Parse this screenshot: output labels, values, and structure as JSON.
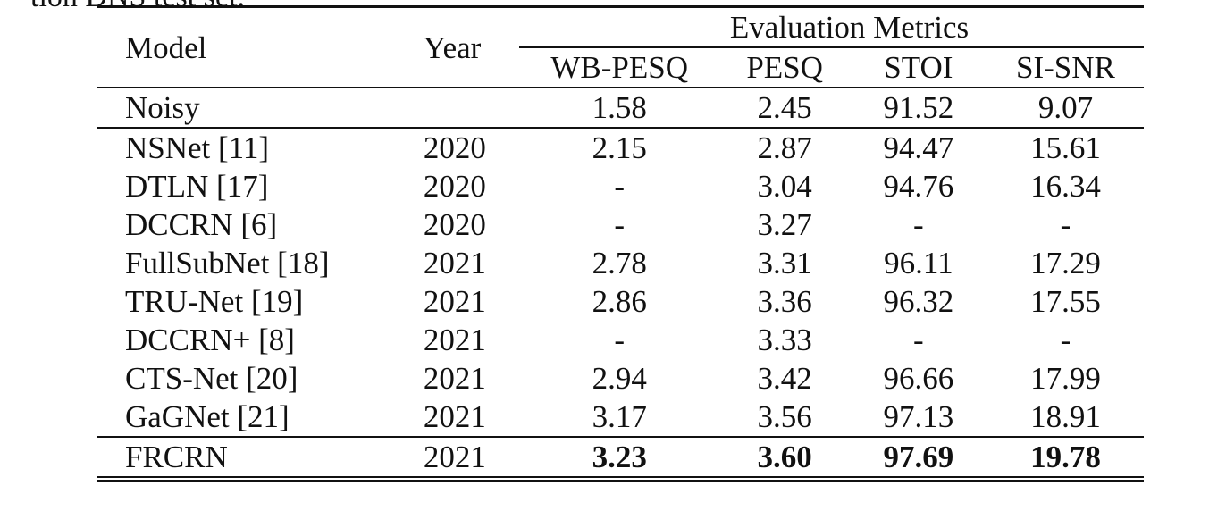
{
  "caption_tail": "tion DNS test set.",
  "table": {
    "header": {
      "model": "Model",
      "year": "Year",
      "group": "Evaluation Metrics",
      "metrics": [
        "WB-PESQ",
        "PESQ",
        "STOI",
        "SI-SNR"
      ]
    },
    "noisy": {
      "model": "Noisy",
      "year": "",
      "wb_pesq": "1.58",
      "pesq": "2.45",
      "stoi": "91.52",
      "si_snr": "9.07"
    },
    "rows": [
      {
        "model": "NSNet [11]",
        "year": "2020",
        "wb_pesq": "2.15",
        "pesq": "2.87",
        "stoi": "94.47",
        "si_snr": "15.61"
      },
      {
        "model": "DTLN [17]",
        "year": "2020",
        "wb_pesq": "-",
        "pesq": "3.04",
        "stoi": "94.76",
        "si_snr": "16.34"
      },
      {
        "model": "DCCRN [6]",
        "year": "2020",
        "wb_pesq": "-",
        "pesq": "3.27",
        "stoi": "-",
        "si_snr": "-"
      },
      {
        "model": "FullSubNet [18]",
        "year": "2021",
        "wb_pesq": "2.78",
        "pesq": "3.31",
        "stoi": "96.11",
        "si_snr": "17.29"
      },
      {
        "model": "TRU-Net [19]",
        "year": "2021",
        "wb_pesq": "2.86",
        "pesq": "3.36",
        "stoi": "96.32",
        "si_snr": "17.55"
      },
      {
        "model": "DCCRN+ [8]",
        "year": "2021",
        "wb_pesq": "-",
        "pesq": "3.33",
        "stoi": "-",
        "si_snr": "-"
      },
      {
        "model": "CTS-Net [20]",
        "year": "2021",
        "wb_pesq": "2.94",
        "pesq": "3.42",
        "stoi": "96.66",
        "si_snr": "17.99"
      },
      {
        "model": "GaGNet [21]",
        "year": "2021",
        "wb_pesq": "3.17",
        "pesq": "3.56",
        "stoi": "97.13",
        "si_snr": "18.91"
      }
    ],
    "final": {
      "model": "FRCRN",
      "year": "2021",
      "wb_pesq": "3.23",
      "pesq": "3.60",
      "stoi": "97.69",
      "si_snr": "19.78"
    }
  }
}
